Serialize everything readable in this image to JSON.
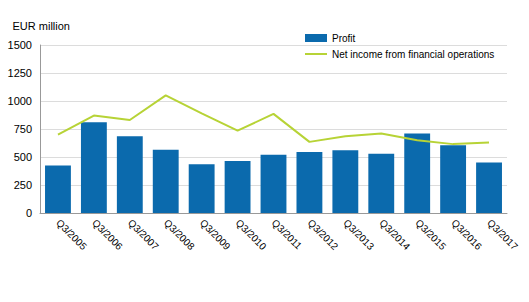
{
  "chart_data": {
    "type": "bar",
    "y_label": "EUR million",
    "categories": [
      "Q3/2005",
      "Q3/2006",
      "Q3/2007",
      "Q3/2008",
      "Q3/2009",
      "Q3/2010",
      "Q3/2011",
      "Q3/2012",
      "Q3/2013",
      "Q3/2014",
      "Q3/2015",
      "Q3/2016",
      "Q3/2017"
    ],
    "series": [
      {
        "name": "Profit",
        "type": "bar",
        "color": "#0b6aad",
        "values": [
          425,
          810,
          685,
          565,
          435,
          465,
          520,
          545,
          560,
          530,
          710,
          605,
          450
        ]
      },
      {
        "name": "Net income from financial operations",
        "type": "line",
        "color": "#b7d336",
        "values": [
          700,
          870,
          830,
          1050,
          890,
          735,
          885,
          635,
          685,
          710,
          650,
          615,
          630
        ]
      }
    ],
    "ylim": [
      0,
      1500
    ],
    "yticks": [
      0,
      250,
      500,
      750,
      1000,
      1250,
      1500
    ],
    "grid": true,
    "legend": "upper right"
  }
}
